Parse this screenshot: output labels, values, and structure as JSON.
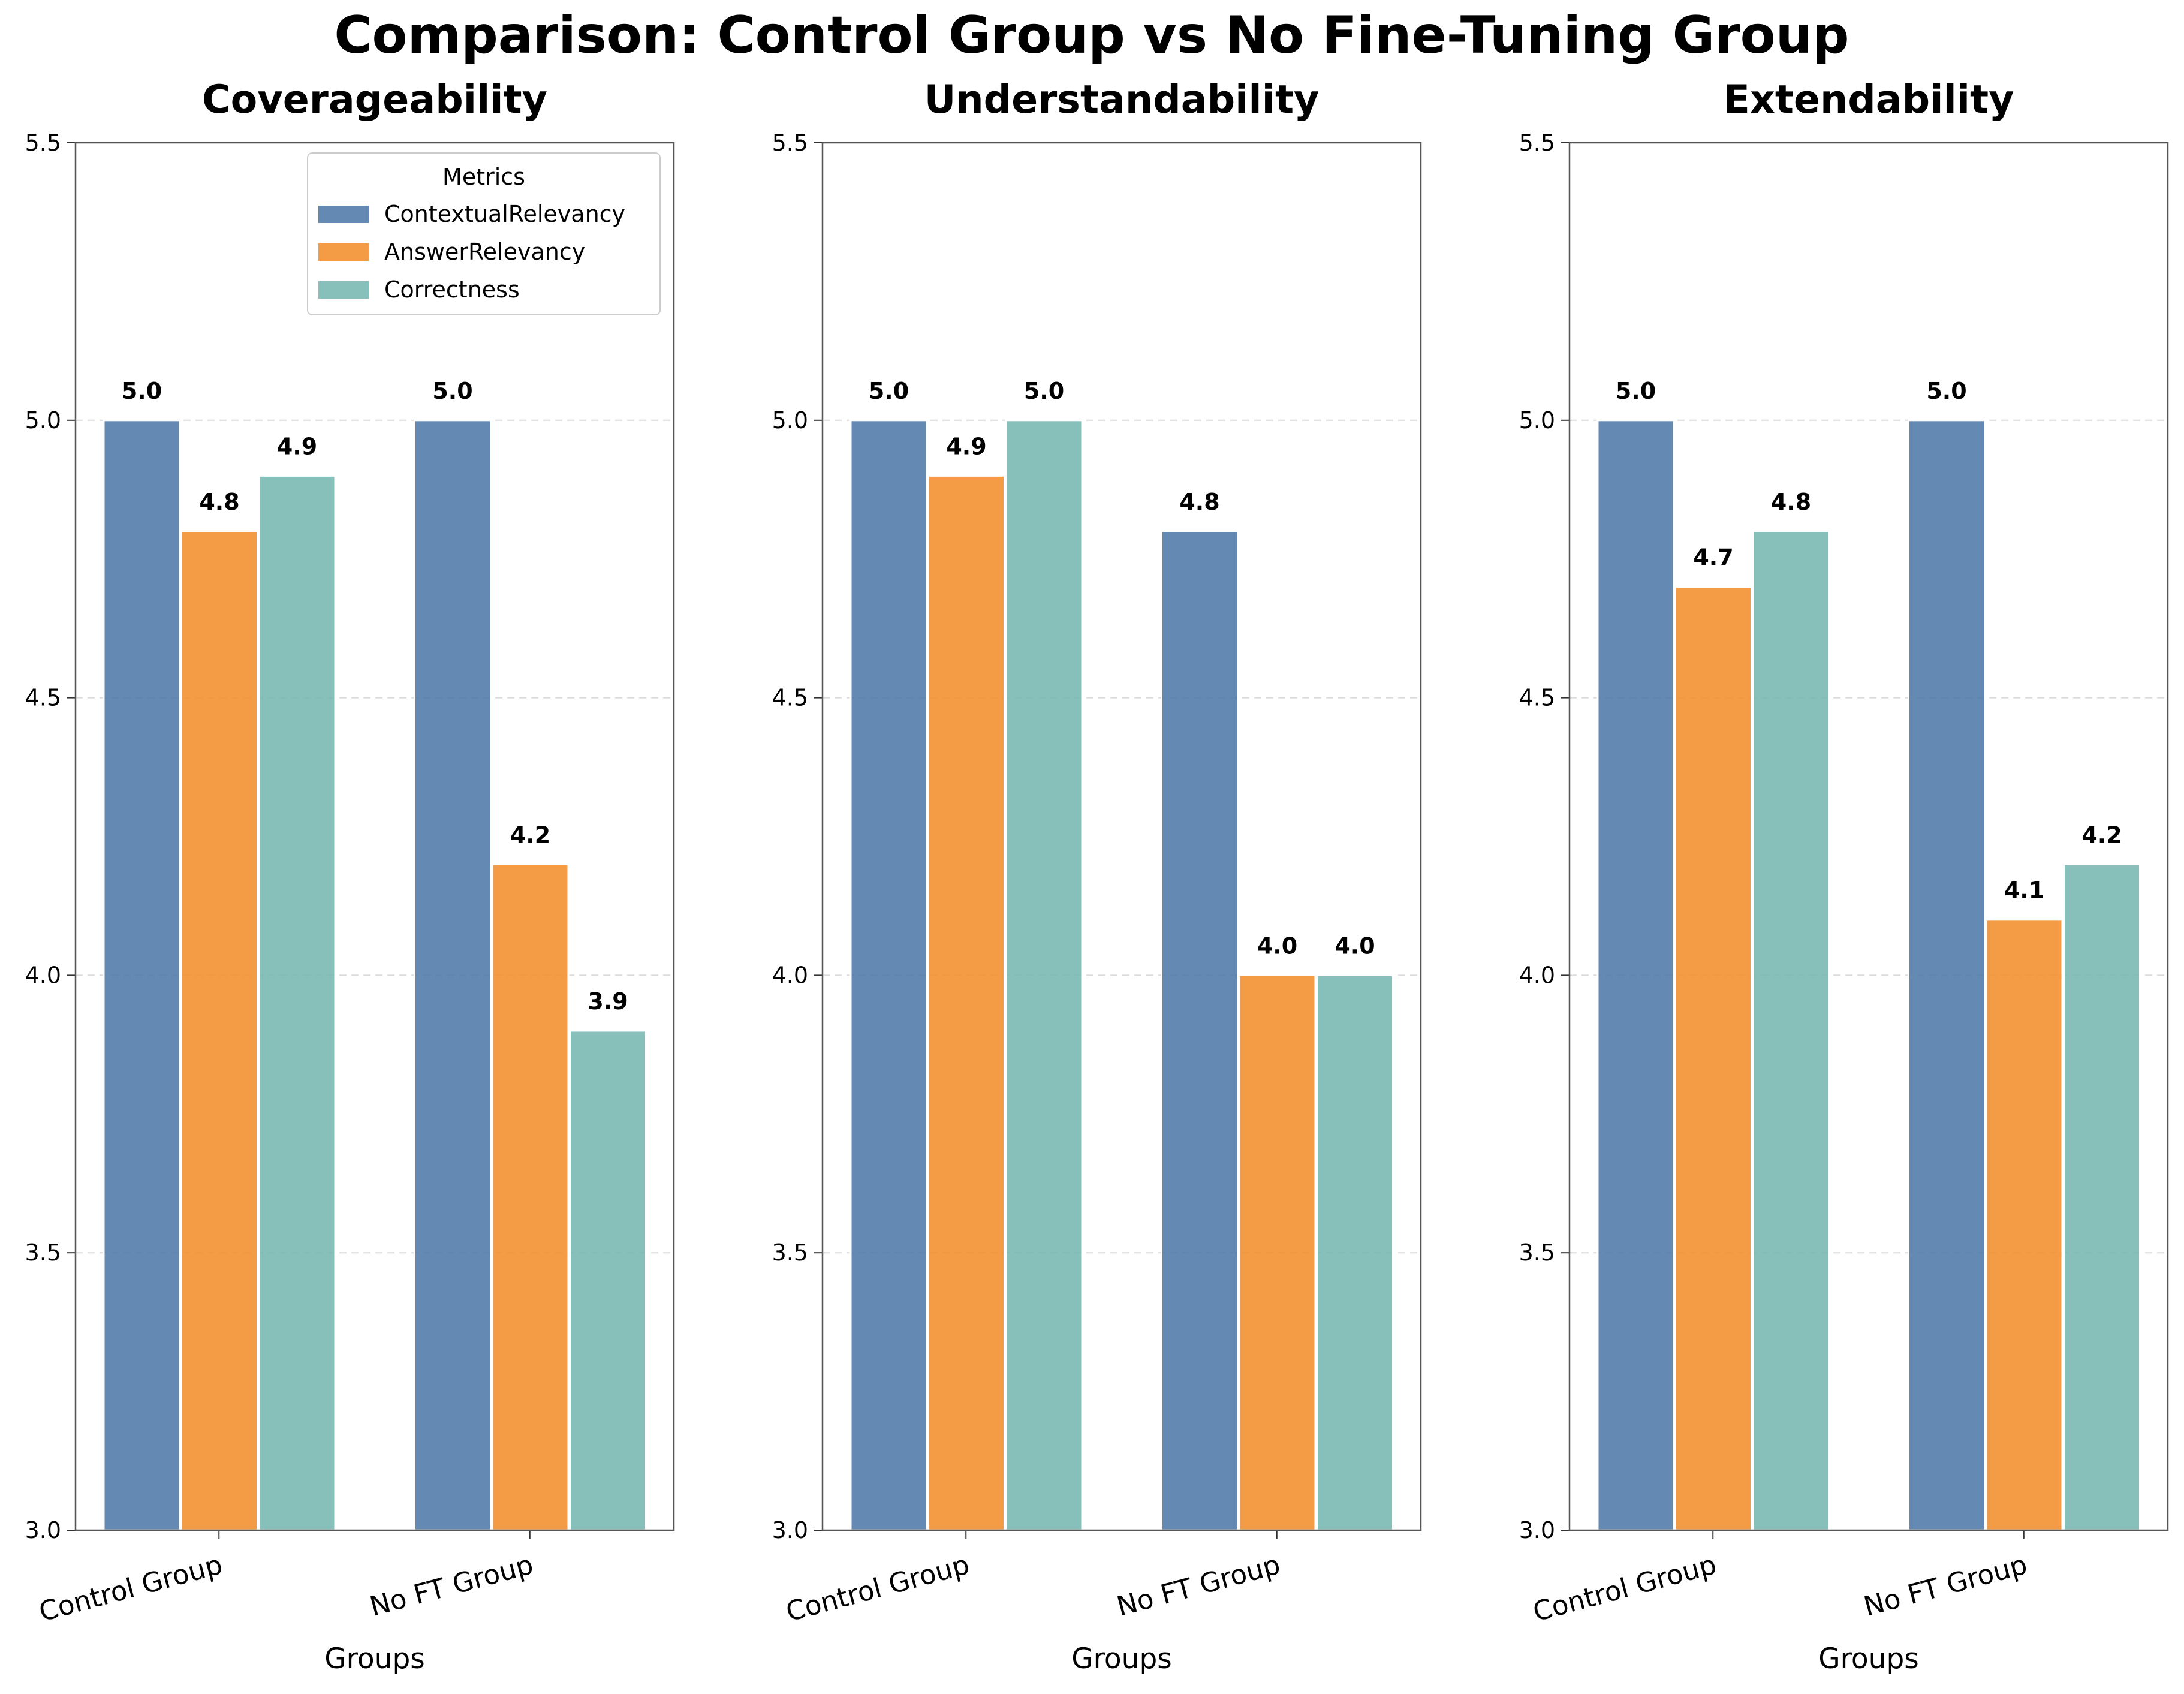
{
  "title": "Comparison: Control Group vs No Fine-Tuning Group",
  "legend": {
    "title": "Metrics",
    "placement": "upper-right of first panel"
  },
  "colors": {
    "ContextualRelevancy": "#4e79a7",
    "AnswerRelevancy": "#f28e2b",
    "Correctness": "#76b7b2"
  },
  "chart_data": [
    {
      "type": "bar",
      "title": "Coverageability",
      "xlabel": "Groups",
      "ylabel": "",
      "categories": [
        "Control Group",
        "No FT Group"
      ],
      "ylim": [
        3.0,
        5.5
      ],
      "yticks": [
        "3.0",
        "3.5",
        "4.0",
        "4.5",
        "5.0",
        "5.5"
      ],
      "grid": "horizontal dashed",
      "series": [
        {
          "name": "ContextualRelevancy",
          "values": [
            5.0,
            5.0
          ],
          "labels": [
            "5.0",
            "5.0"
          ]
        },
        {
          "name": "AnswerRelevancy",
          "values": [
            4.8,
            4.2
          ],
          "labels": [
            "4.8",
            "4.2"
          ]
        },
        {
          "name": "Correctness",
          "values": [
            4.9,
            3.9
          ],
          "labels": [
            "4.9",
            "3.9"
          ]
        }
      ]
    },
    {
      "type": "bar",
      "title": "Understandability",
      "xlabel": "Groups",
      "ylabel": "",
      "categories": [
        "Control Group",
        "No FT Group"
      ],
      "ylim": [
        3.0,
        5.5
      ],
      "yticks": [
        "3.0",
        "3.5",
        "4.0",
        "4.5",
        "5.0",
        "5.5"
      ],
      "grid": "horizontal dashed",
      "series": [
        {
          "name": "ContextualRelevancy",
          "values": [
            5.0,
            4.8
          ],
          "labels": [
            "5.0",
            "4.8"
          ]
        },
        {
          "name": "AnswerRelevancy",
          "values": [
            4.9,
            4.0
          ],
          "labels": [
            "4.9",
            "4.0"
          ]
        },
        {
          "name": "Correctness",
          "values": [
            5.0,
            4.0
          ],
          "labels": [
            "5.0",
            "4.0"
          ]
        }
      ]
    },
    {
      "type": "bar",
      "title": "Extendability",
      "xlabel": "Groups",
      "ylabel": "",
      "categories": [
        "Control Group",
        "No FT Group"
      ],
      "ylim": [
        3.0,
        5.5
      ],
      "yticks": [
        "3.0",
        "3.5",
        "4.0",
        "4.5",
        "5.0",
        "5.5"
      ],
      "grid": "horizontal dashed",
      "series": [
        {
          "name": "ContextualRelevancy",
          "values": [
            5.0,
            5.0
          ],
          "labels": [
            "5.0",
            "5.0"
          ]
        },
        {
          "name": "AnswerRelevancy",
          "values": [
            4.7,
            4.1
          ],
          "labels": [
            "4.7",
            "4.1"
          ]
        },
        {
          "name": "Correctness",
          "values": [
            4.8,
            4.2
          ],
          "labels": [
            "4.8",
            "4.2"
          ]
        }
      ]
    }
  ]
}
